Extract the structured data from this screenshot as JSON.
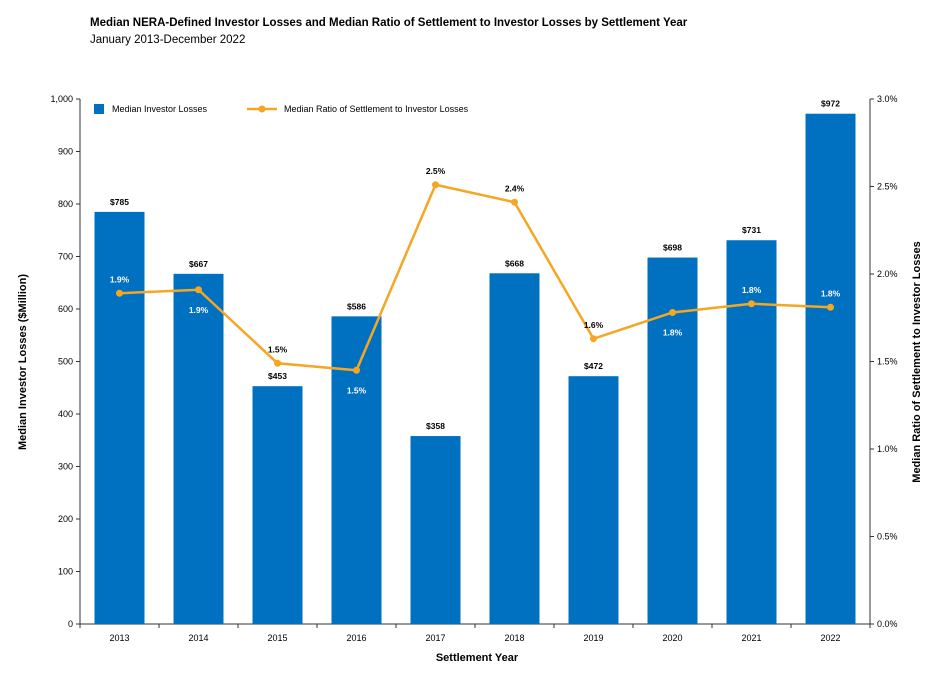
{
  "chart_data": {
    "type": "bar",
    "title": "Median NERA-Defined Investor Losses and Median Ratio of Settlement to Investor Losses by Settlement Year",
    "subtitle": "January 2013-December 2022",
    "xlabel": "Settlement Year",
    "ylabel": "Median Investor Losses ($Million)",
    "y2label": "Median Ratio of Settlement to Investor Losses",
    "categories": [
      "2013",
      "2014",
      "2015",
      "2016",
      "2017",
      "2018",
      "2019",
      "2020",
      "2021",
      "2022"
    ],
    "ylim": [
      0,
      1000
    ],
    "y2lim": [
      0,
      3.0
    ],
    "y_ticks": [
      "0",
      "100",
      "200",
      "300",
      "400",
      "500",
      "600",
      "700",
      "800",
      "900",
      "1,000"
    ],
    "y2_ticks": [
      "0.0%",
      "0.5%",
      "1.0%",
      "1.5%",
      "2.0%",
      "2.5%",
      "3.0%"
    ],
    "grid": false,
    "legend_position": "top-left",
    "series": [
      {
        "name": "Median Investor Losses",
        "type": "bar",
        "axis": "left",
        "color": "#0070c0",
        "values": [
          785,
          667,
          453,
          586,
          358,
          668,
          472,
          698,
          731,
          972
        ],
        "labels": [
          "$785",
          "$667",
          "$453",
          "$586",
          "$358",
          "$668",
          "$472",
          "$698",
          "$731",
          "$972"
        ]
      },
      {
        "name": "Median Ratio of Settlement to Investor Losses",
        "type": "line",
        "axis": "right",
        "color": "#f5a623",
        "values": [
          1.89,
          1.91,
          1.49,
          1.45,
          2.51,
          2.41,
          1.63,
          1.78,
          1.83,
          1.81
        ],
        "labels": [
          "1.9%",
          "1.9%",
          "1.5%",
          "1.5%",
          "2.5%",
          "2.4%",
          "1.6%",
          "1.8%",
          "1.8%",
          "1.8%"
        ],
        "label_position": [
          "in",
          "in",
          "above",
          "in",
          "above",
          "above",
          "above",
          "in",
          "in",
          "in"
        ]
      }
    ]
  }
}
